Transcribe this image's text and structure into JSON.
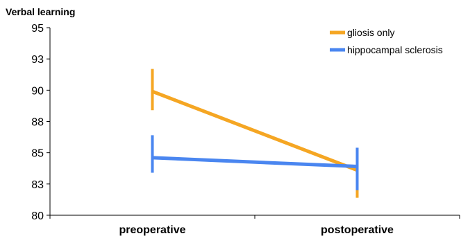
{
  "chart_data": {
    "type": "line",
    "title": "Verbal learning",
    "categories": [
      "preoperative",
      "postoperative"
    ],
    "yticks": [
      "95",
      "93",
      "90",
      "88",
      "85",
      "83",
      "80"
    ],
    "ylim": [
      80,
      95
    ],
    "grid": false,
    "legend_position": "top-right",
    "series": [
      {
        "name": "gliosis only",
        "color": "#F5A623",
        "values": [
          89.9,
          83.6
        ],
        "error_low": [
          88.4,
          81.4
        ],
        "error_high": [
          91.7,
          84.6
        ]
      },
      {
        "name": "hippocampal sclerosis",
        "color": "#4A86F0",
        "values": [
          84.6,
          83.9
        ],
        "error_low": [
          83.4,
          82.0
        ],
        "error_high": [
          86.4,
          85.4
        ]
      }
    ]
  }
}
